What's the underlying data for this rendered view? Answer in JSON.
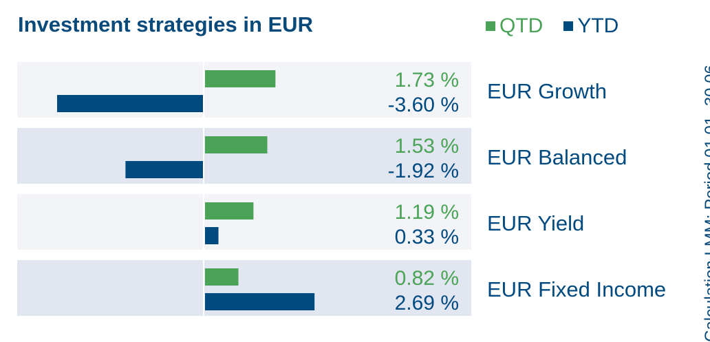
{
  "title": "Investment strategies in EUR",
  "side_note": "Calculation LMM; Period 01.01.-30.06.",
  "colors": {
    "qtd": "#4aa357",
    "ytd": "#004a80",
    "band_light": "#f3f4f8",
    "band_dark": "#e2e6f0",
    "axis": "#ffffff"
  },
  "chart_data": {
    "type": "bar",
    "orientation": "horizontal",
    "title": "Investment strategies in EUR",
    "legend": {
      "placement": "top-right",
      "entries": [
        "QTD",
        "YTD"
      ]
    },
    "categories": [
      "EUR Growth",
      "EUR Balanced",
      "EUR Yield",
      "EUR Fixed Income"
    ],
    "series": [
      {
        "name": "QTD",
        "values": [
          1.73,
          1.53,
          1.19,
          0.82
        ],
        "labels": [
          "1.73 %",
          "1.53 %",
          "1.19 %",
          "0.82 %"
        ]
      },
      {
        "name": "YTD",
        "values": [
          -3.6,
          -1.92,
          0.33,
          2.69
        ],
        "labels": [
          "-3.60 %",
          "-1.92 %",
          "0.33 %",
          "2.69 %"
        ]
      }
    ],
    "xlim": [
      -4.0,
      6.6
    ],
    "grid": false
  }
}
